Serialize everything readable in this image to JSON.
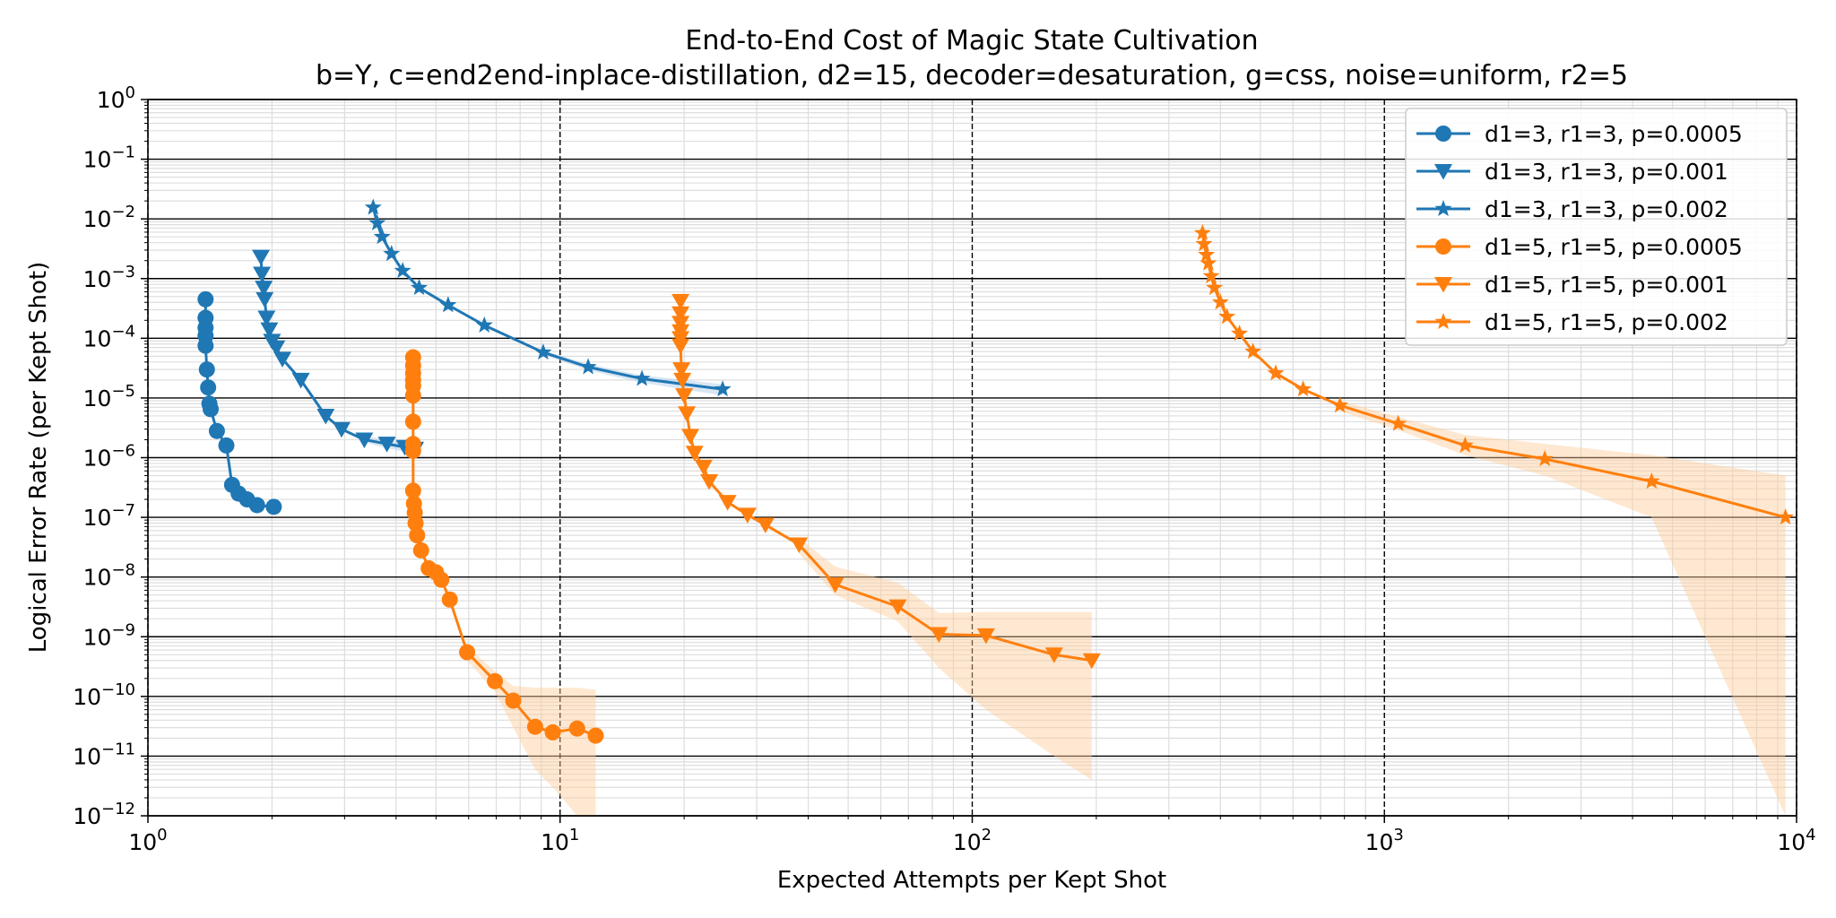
{
  "chart_data": {
    "type": "line",
    "title": "End-to-End Cost of Magic State Cultivation",
    "subtitle": "b=Y, c=end2end-inplace-distillation, d2=15, decoder=desaturation, g=css, noise=uniform, r2=5",
    "xlabel": "Expected Attempts per Kept Shot",
    "ylabel": "Logical Error Rate (per Kept Shot)",
    "xscale": "log",
    "yscale": "log",
    "xlim": [
      1,
      10000
    ],
    "ylim": [
      1e-12,
      1
    ],
    "x_ticks": [
      {
        "base": "10",
        "exp": "0",
        "value": 1
      },
      {
        "base": "10",
        "exp": "1",
        "value": 10
      },
      {
        "base": "10",
        "exp": "2",
        "value": 100
      },
      {
        "base": "10",
        "exp": "3",
        "value": 1000
      },
      {
        "base": "10",
        "exp": "4",
        "value": 10000
      }
    ],
    "y_ticks": [
      {
        "base": "10",
        "exp": "0",
        "value": 1
      },
      {
        "base": "10",
        "exp": "−1",
        "value": 0.1
      },
      {
        "base": "10",
        "exp": "−2",
        "value": 0.01
      },
      {
        "base": "10",
        "exp": "−3",
        "value": 0.001
      },
      {
        "base": "10",
        "exp": "−4",
        "value": 0.0001
      },
      {
        "base": "10",
        "exp": "−5",
        "value": 1e-05
      },
      {
        "base": "10",
        "exp": "−6",
        "value": 1e-06
      },
      {
        "base": "10",
        "exp": "−7",
        "value": 1e-07
      },
      {
        "base": "10",
        "exp": "−8",
        "value": 1e-08
      },
      {
        "base": "10",
        "exp": "−9",
        "value": 1e-09
      },
      {
        "base": "10",
        "exp": "−10",
        "value": 1e-10
      },
      {
        "base": "10",
        "exp": "−11",
        "value": 1e-11
      },
      {
        "base": "10",
        "exp": "−12",
        "value": 1e-12
      }
    ],
    "grid": true,
    "legend_position": "top-right",
    "series": [
      {
        "name": "d1=3, r1=3, p=0.0005",
        "color": "#1f77b4",
        "marker": "circle",
        "points": [
          [
            1.38,
            0.00045
          ],
          [
            1.38,
            0.00022
          ],
          [
            1.38,
            0.00015
          ],
          [
            1.38,
            0.00011
          ],
          [
            1.38,
            7.5e-05
          ],
          [
            1.39,
            3e-05
          ],
          [
            1.4,
            1.5e-05
          ],
          [
            1.41,
            8e-06
          ],
          [
            1.42,
            6.5e-06
          ],
          [
            1.47,
            2.8e-06
          ],
          [
            1.55,
            1.6e-06
          ],
          [
            1.6,
            3.5e-07
          ],
          [
            1.66,
            2.5e-07
          ],
          [
            1.74,
            2e-07
          ],
          [
            1.84,
            1.6e-07
          ],
          [
            2.02,
            1.5e-07
          ]
        ],
        "band": null
      },
      {
        "name": "d1=3, r1=3, p=0.001",
        "color": "#1f77b4",
        "marker": "triangle-down",
        "points": [
          [
            1.88,
            0.0023
          ],
          [
            1.89,
            0.0012
          ],
          [
            1.91,
            0.0007
          ],
          [
            1.92,
            0.00045
          ],
          [
            1.94,
            0.00022
          ],
          [
            1.97,
            0.00014
          ],
          [
            2.0,
            9e-05
          ],
          [
            2.05,
            7e-05
          ],
          [
            2.12,
            4.5e-05
          ],
          [
            2.35,
            2e-05
          ],
          [
            2.7,
            5e-06
          ],
          [
            2.95,
            3e-06
          ],
          [
            3.35,
            2e-06
          ],
          [
            3.8,
            1.7e-06
          ],
          [
            4.2,
            1.5e-06
          ],
          [
            4.45,
            1.4e-06
          ]
        ],
        "band": {
          "x": [
            3.35,
            3.8,
            4.2,
            4.45
          ],
          "low": [
            1.8e-06,
            1.45e-06,
            1.25e-06,
            1.15e-06
          ],
          "high": [
            2.3e-06,
            2e-06,
            1.8e-06,
            1.7e-06
          ]
        }
      },
      {
        "name": "d1=3, r1=3, p=0.002",
        "color": "#1f77b4",
        "marker": "star",
        "points": [
          [
            3.52,
            0.0155
          ],
          [
            3.6,
            0.0085
          ],
          [
            3.7,
            0.005
          ],
          [
            3.9,
            0.0026
          ],
          [
            4.15,
            0.00135
          ],
          [
            4.55,
            0.0007
          ],
          [
            5.35,
            0.00036
          ],
          [
            6.55,
            0.000165
          ],
          [
            9.1,
            5.8e-05
          ],
          [
            11.7,
            3.3e-05
          ],
          [
            15.8,
            2.1e-05
          ],
          [
            24.8,
            1.4e-05
          ]
        ],
        "band": {
          "x": [
            9.1,
            11.7,
            15.8,
            24.8
          ],
          "low": [
            5.3e-05,
            2.9e-05,
            1.8e-05,
            1.1e-05
          ],
          "high": [
            6.3e-05,
            3.7e-05,
            2.4e-05,
            1.7e-05
          ]
        }
      },
      {
        "name": "d1=5, r1=5, p=0.0005",
        "color": "#ff7f0e",
        "marker": "circle",
        "points": [
          [
            4.4,
            4.8e-05
          ],
          [
            4.4,
            3.5e-05
          ],
          [
            4.4,
            2.6e-05
          ],
          [
            4.4,
            2e-05
          ],
          [
            4.4,
            1.6e-05
          ],
          [
            4.4,
            1.1e-05
          ],
          [
            4.4,
            4e-06
          ],
          [
            4.4,
            1.7e-06
          ],
          [
            4.4,
            1.3e-06
          ],
          [
            4.4,
            2.8e-07
          ],
          [
            4.42,
            1.7e-07
          ],
          [
            4.44,
            1.2e-07
          ],
          [
            4.46,
            8e-08
          ],
          [
            4.5,
            5e-08
          ],
          [
            4.6,
            2.8e-08
          ],
          [
            4.8,
            1.4e-08
          ],
          [
            5.0,
            1.2e-08
          ],
          [
            5.15,
            9e-09
          ],
          [
            5.4,
            4.2e-09
          ],
          [
            5.95,
            5.5e-10
          ],
          [
            6.95,
            1.8e-10
          ],
          [
            7.7,
            8.5e-11
          ],
          [
            8.7,
            3.1e-11
          ],
          [
            9.6,
            2.5e-11
          ],
          [
            11.0,
            2.9e-11
          ],
          [
            12.2,
            2.2e-11
          ]
        ],
        "band": {
          "x": [
            5.95,
            6.95,
            7.7,
            8.7,
            9.6,
            11.0,
            12.2
          ],
          "low": [
            4e-10,
            1.2e-10,
            3e-11,
            6e-12,
            3e-12,
            1e-12,
            1e-12
          ],
          "high": [
            7e-10,
            2.6e-10,
            1.5e-10,
            1.4e-10,
            1.4e-10,
            1.4e-10,
            1.3e-10
          ]
        }
      },
      {
        "name": "d1=5, r1=5, p=0.001",
        "color": "#ff7f0e",
        "marker": "triangle-down",
        "points": [
          [
            19.6,
            0.00042
          ],
          [
            19.6,
            0.00026
          ],
          [
            19.6,
            0.00018
          ],
          [
            19.6,
            0.00013
          ],
          [
            19.6,
            0.0001
          ],
          [
            19.6,
            7.5e-05
          ],
          [
            19.7,
            3e-05
          ],
          [
            19.8,
            2e-05
          ],
          [
            20.0,
            1.1e-05
          ],
          [
            20.3,
            5.5e-06
          ],
          [
            20.7,
            2.3e-06
          ],
          [
            21.2,
            1.2e-06
          ],
          [
            22.3,
            7e-07
          ],
          [
            23.0,
            4e-07
          ],
          [
            25.5,
            1.8e-07
          ],
          [
            28.5,
            1.1e-07
          ],
          [
            31.5,
            7.5e-08
          ],
          [
            38.0,
            3.5e-08
          ],
          [
            46.5,
            7.5e-09
          ],
          [
            66.0,
            3.2e-09
          ],
          [
            83.0,
            1.1e-09
          ],
          [
            108.0,
            1.05e-09
          ],
          [
            158.0,
            5e-10
          ],
          [
            195.0,
            4e-10
          ]
        ],
        "band": {
          "x": [
            38.0,
            46.5,
            66.0,
            83.0,
            108.0,
            158.0,
            195.0
          ],
          "low": [
            2.5e-08,
            5e-09,
            1.8e-09,
            3e-10,
            6e-11,
            1e-11,
            4e-12
          ],
          "high": [
            4.5e-08,
            1.5e-08,
            8e-09,
            2.5e-09,
            2.6e-09,
            2.6e-09,
            2.6e-09
          ]
        }
      },
      {
        "name": "d1=5, r1=5, p=0.002",
        "color": "#ff7f0e",
        "marker": "star",
        "points": [
          [
            362,
            0.0058
          ],
          [
            365,
            0.0038
          ],
          [
            370,
            0.0025
          ],
          [
            374,
            0.0018
          ],
          [
            380,
            0.0011
          ],
          [
            387,
            0.0007
          ],
          [
            400,
            0.0004
          ],
          [
            415,
            0.00023
          ],
          [
            445,
            0.00012
          ],
          [
            480,
            6e-05
          ],
          [
            545,
            2.6e-05
          ],
          [
            635,
            1.4e-05
          ],
          [
            780,
            7.5e-06
          ],
          [
            1080,
            3.7e-06
          ],
          [
            1570,
            1.6e-06
          ],
          [
            2450,
            9.5e-07
          ],
          [
            4450,
            4e-07
          ],
          [
            9400,
            1e-07
          ]
        ],
        "band": {
          "x": [
            780,
            1080,
            1570,
            2450,
            4450,
            9400
          ],
          "low": [
            6e-06,
            2.9e-06,
            1.1e-06,
            5e-07,
            1e-07,
            1e-12
          ],
          "high": [
            9e-06,
            4.8e-06,
            2.4e-06,
            1.7e-06,
            1.1e-06,
            5e-07
          ]
        }
      }
    ]
  }
}
